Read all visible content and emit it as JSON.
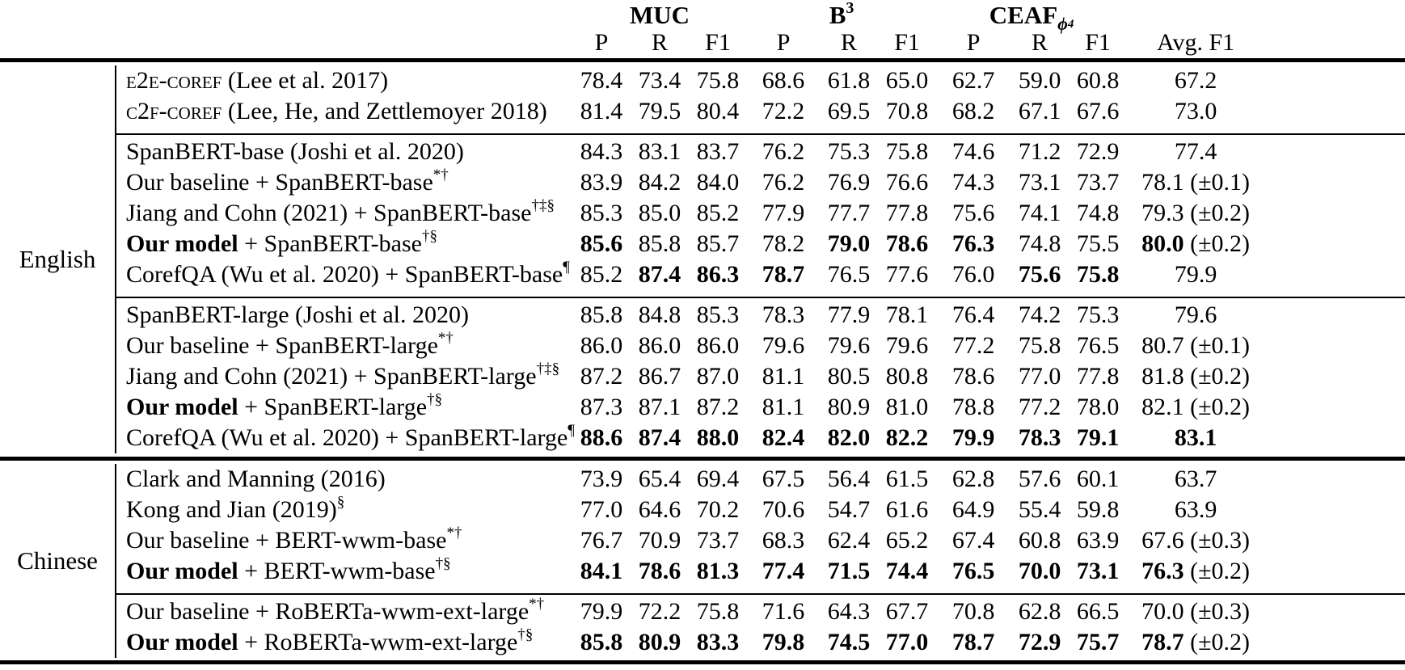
{
  "table": {
    "headers": {
      "muc": "MUC",
      "b3_base": "B",
      "b3_sup": "3",
      "ceaf_base": "CEAF",
      "ceaf_sub": "ϕ",
      "ceaf_subsub": "4",
      "prf": [
        "P",
        "R",
        "F1"
      ],
      "avg": "Avg. F1"
    },
    "sections": [
      {
        "language": "English",
        "groups": [
          [
            {
              "sc": "e2e-coref",
              "bold_label": "",
              "label": " (Lee et al. 2017)",
              "sup": "",
              "values": [
                "78.4",
                "73.4",
                "75.8",
                "68.6",
                "61.8",
                "65.0",
                "62.7",
                "59.0",
                "60.8",
                "67.2"
              ],
              "bold": [
                0,
                0,
                0,
                0,
                0,
                0,
                0,
                0,
                0,
                0
              ],
              "note": ""
            },
            {
              "sc": "c2f-coref",
              "bold_label": "",
              "label": " (Lee, He, and Zettlemoyer 2018)",
              "sup": "",
              "values": [
                "81.4",
                "79.5",
                "80.4",
                "72.2",
                "69.5",
                "70.8",
                "68.2",
                "67.1",
                "67.6",
                "73.0"
              ],
              "bold": [
                0,
                0,
                0,
                0,
                0,
                0,
                0,
                0,
                0,
                0
              ],
              "note": ""
            }
          ],
          [
            {
              "sc": "",
              "bold_label": "",
              "label": "SpanBERT-base (Joshi et al. 2020)",
              "sup": "",
              "values": [
                "84.3",
                "83.1",
                "83.7",
                "76.2",
                "75.3",
                "75.8",
                "74.6",
                "71.2",
                "72.9",
                "77.4"
              ],
              "bold": [
                0,
                0,
                0,
                0,
                0,
                0,
                0,
                0,
                0,
                0
              ],
              "note": ""
            },
            {
              "sc": "",
              "bold_label": "",
              "label": "Our baseline + SpanBERT-base",
              "sup": "*†",
              "values": [
                "83.9",
                "84.2",
                "84.0",
                "76.2",
                "76.9",
                "76.6",
                "74.3",
                "73.1",
                "73.7",
                "78.1"
              ],
              "bold": [
                0,
                0,
                0,
                0,
                0,
                0,
                0,
                0,
                0,
                0
              ],
              "note": "(±0.1)"
            },
            {
              "sc": "",
              "bold_label": "",
              "label": "Jiang and Cohn (2021) + SpanBERT-base",
              "sup": "†‡§",
              "values": [
                "85.3",
                "85.0",
                "85.2",
                "77.9",
                "77.7",
                "77.8",
                "75.6",
                "74.1",
                "74.8",
                "79.3"
              ],
              "bold": [
                0,
                0,
                0,
                0,
                0,
                0,
                0,
                0,
                0,
                0
              ],
              "note": "(±0.2)"
            },
            {
              "sc": "",
              "bold_label": "Our model",
              "label": " + SpanBERT-base",
              "sup": "†§",
              "values": [
                "85.6",
                "85.8",
                "85.7",
                "78.2",
                "79.0",
                "78.6",
                "76.3",
                "74.8",
                "75.5",
                "80.0"
              ],
              "bold": [
                1,
                0,
                0,
                0,
                1,
                1,
                1,
                0,
                0,
                1
              ],
              "note": "(±0.2)"
            },
            {
              "sc": "",
              "bold_label": "",
              "label": "CorefQA (Wu et al. 2020) + SpanBERT-base",
              "sup": "¶",
              "values": [
                "85.2",
                "87.4",
                "86.3",
                "78.7",
                "76.5",
                "77.6",
                "76.0",
                "75.6",
                "75.8",
                "79.9"
              ],
              "bold": [
                0,
                1,
                1,
                1,
                0,
                0,
                0,
                1,
                1,
                0
              ],
              "note": ""
            }
          ],
          [
            {
              "sc": "",
              "bold_label": "",
              "label": "SpanBERT-large (Joshi et al. 2020)",
              "sup": "",
              "values": [
                "85.8",
                "84.8",
                "85.3",
                "78.3",
                "77.9",
                "78.1",
                "76.4",
                "74.2",
                "75.3",
                "79.6"
              ],
              "bold": [
                0,
                0,
                0,
                0,
                0,
                0,
                0,
                0,
                0,
                0
              ],
              "note": ""
            },
            {
              "sc": "",
              "bold_label": "",
              "label": "Our baseline + SpanBERT-large",
              "sup": "*†",
              "values": [
                "86.0",
                "86.0",
                "86.0",
                "79.6",
                "79.6",
                "79.6",
                "77.2",
                "75.8",
                "76.5",
                "80.7"
              ],
              "bold": [
                0,
                0,
                0,
                0,
                0,
                0,
                0,
                0,
                0,
                0
              ],
              "note": "(±0.1)"
            },
            {
              "sc": "",
              "bold_label": "",
              "label": "Jiang and Cohn (2021) + SpanBERT-large",
              "sup": "†‡§",
              "values": [
                "87.2",
                "86.7",
                "87.0",
                "81.1",
                "80.5",
                "80.8",
                "78.6",
                "77.0",
                "77.8",
                "81.8"
              ],
              "bold": [
                0,
                0,
                0,
                0,
                0,
                0,
                0,
                0,
                0,
                0
              ],
              "note": "(±0.2)"
            },
            {
              "sc": "",
              "bold_label": "Our model",
              "label": " + SpanBERT-large",
              "sup": "†§",
              "values": [
                "87.3",
                "87.1",
                "87.2",
                "81.1",
                "80.9",
                "81.0",
                "78.8",
                "77.2",
                "78.0",
                "82.1"
              ],
              "bold": [
                0,
                0,
                0,
                0,
                0,
                0,
                0,
                0,
                0,
                0
              ],
              "note": "(±0.2)"
            },
            {
              "sc": "",
              "bold_label": "",
              "label": "CorefQA (Wu et al. 2020) + SpanBERT-large",
              "sup": "¶",
              "values": [
                "88.6",
                "87.4",
                "88.0",
                "82.4",
                "82.0",
                "82.2",
                "79.9",
                "78.3",
                "79.1",
                "83.1"
              ],
              "bold": [
                1,
                1,
                1,
                1,
                1,
                1,
                1,
                1,
                1,
                1
              ],
              "note": ""
            }
          ]
        ]
      },
      {
        "language": "Chinese",
        "groups": [
          [
            {
              "sc": "",
              "bold_label": "",
              "label": "Clark and Manning (2016)",
              "sup": "",
              "values": [
                "73.9",
                "65.4",
                "69.4",
                "67.5",
                "56.4",
                "61.5",
                "62.8",
                "57.6",
                "60.1",
                "63.7"
              ],
              "bold": [
                0,
                0,
                0,
                0,
                0,
                0,
                0,
                0,
                0,
                0
              ],
              "note": ""
            },
            {
              "sc": "",
              "bold_label": "",
              "label": "Kong and Jian (2019)",
              "sup": "§",
              "values": [
                "77.0",
                "64.6",
                "70.2",
                "70.6",
                "54.7",
                "61.6",
                "64.9",
                "55.4",
                "59.8",
                "63.9"
              ],
              "bold": [
                0,
                0,
                0,
                0,
                0,
                0,
                0,
                0,
                0,
                0
              ],
              "note": ""
            },
            {
              "sc": "",
              "bold_label": "",
              "label": "Our baseline + BERT-wwm-base",
              "sup": "*†",
              "values": [
                "76.7",
                "70.9",
                "73.7",
                "68.3",
                "62.4",
                "65.2",
                "67.4",
                "60.8",
                "63.9",
                "67.6"
              ],
              "bold": [
                0,
                0,
                0,
                0,
                0,
                0,
                0,
                0,
                0,
                0
              ],
              "note": "(±0.3)"
            },
            {
              "sc": "",
              "bold_label": "Our model",
              "label": " + BERT-wwm-base",
              "sup": "†§",
              "values": [
                "84.1",
                "78.6",
                "81.3",
                "77.4",
                "71.5",
                "74.4",
                "76.5",
                "70.0",
                "73.1",
                "76.3"
              ],
              "bold": [
                1,
                1,
                1,
                1,
                1,
                1,
                1,
                1,
                1,
                1
              ],
              "note": "(±0.2)"
            }
          ],
          [
            {
              "sc": "",
              "bold_label": "",
              "label": "Our baseline + RoBERTa-wwm-ext-large",
              "sup": "*†",
              "values": [
                "79.9",
                "72.2",
                "75.8",
                "71.6",
                "64.3",
                "67.7",
                "70.8",
                "62.8",
                "66.5",
                "70.0"
              ],
              "bold": [
                0,
                0,
                0,
                0,
                0,
                0,
                0,
                0,
                0,
                0
              ],
              "note": "(±0.3)"
            },
            {
              "sc": "",
              "bold_label": "Our model",
              "label": " + RoBERTa-wwm-ext-large",
              "sup": "†§",
              "values": [
                "85.8",
                "80.9",
                "83.3",
                "79.8",
                "74.5",
                "77.0",
                "78.7",
                "72.9",
                "75.7",
                "78.7"
              ],
              "bold": [
                1,
                1,
                1,
                1,
                1,
                1,
                1,
                1,
                1,
                1
              ],
              "note": "(±0.2)"
            }
          ]
        ]
      }
    ]
  }
}
